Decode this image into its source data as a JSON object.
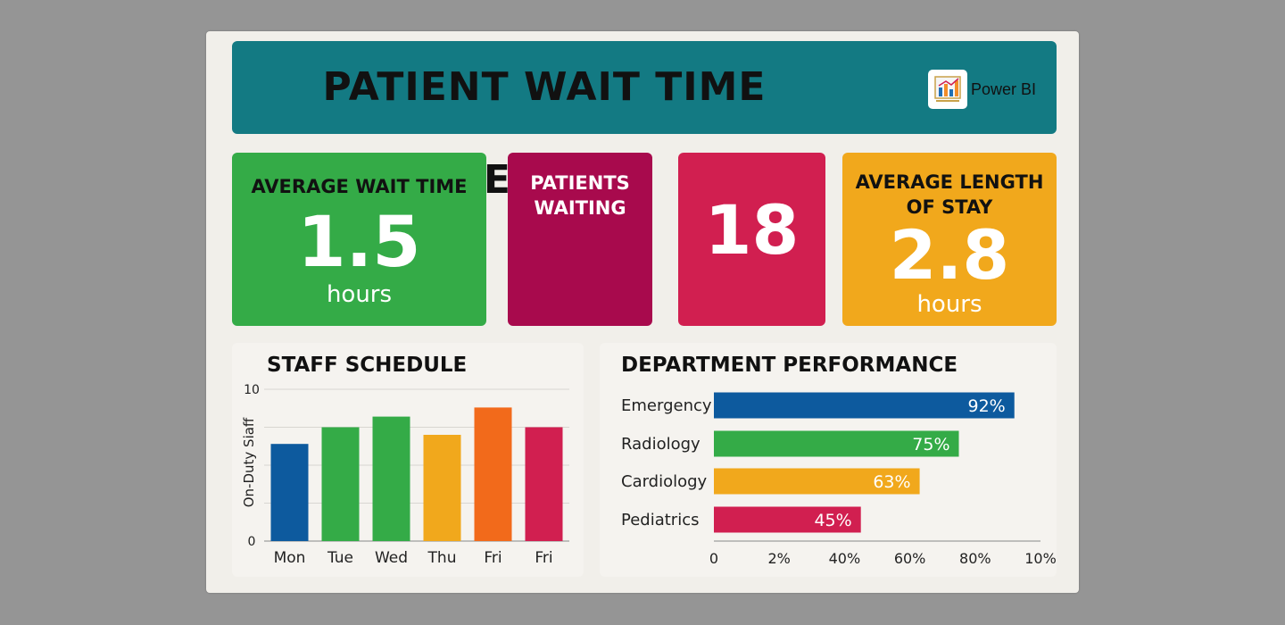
{
  "header": {
    "title": "PATIENT WAIT TIME METRICS",
    "brand_label": "Power BI"
  },
  "kpis": {
    "avg_wait": {
      "label": "AVERAGE WAIT TIME",
      "value": "1.5",
      "unit": "hours",
      "color": "#34ab47"
    },
    "patients_waiting": {
      "label_line1": "PATIENTS",
      "label_line2": "WAITING",
      "color": "#a80a4d"
    },
    "patients_count": {
      "value": "18",
      "color": "#d11f50"
    },
    "avg_length_of_stay": {
      "label_line1": "AVERAGE LENGTH",
      "label_line2": "OF STAY",
      "value": "2.8",
      "unit": "hours",
      "color": "#f1a81c"
    }
  },
  "staff": {
    "title": "STAFF SCHEDULE"
  },
  "dept": {
    "title": "DEPARTMENT PERFORMANCE"
  },
  "chart_data": [
    {
      "type": "bar",
      "title": "STAFF SCHEDULE",
      "ylabel": "On-Duty Siaff",
      "categories": [
        "Mon",
        "Tue",
        "Wed",
        "Thu",
        "Fri",
        "Fri"
      ],
      "values": [
        6.4,
        7.5,
        8.2,
        7.0,
        8.8,
        7.5
      ],
      "colors": [
        "#0d5a9e",
        "#34ab47",
        "#34ab47",
        "#f1a81c",
        "#f26a1b",
        "#d11f50"
      ],
      "ylim": [
        0,
        10
      ],
      "yticks": [
        "0",
        "10"
      ],
      "grid": true
    },
    {
      "type": "bar",
      "orientation": "horizontal",
      "title": "DEPARTMENT PERFORMANCE",
      "categories": [
        "Emergency",
        "Radiology",
        "Cardiology",
        "Pediatrics"
      ],
      "values": [
        92,
        75,
        63,
        45
      ],
      "data_labels": [
        "92%",
        "75%",
        "63%",
        "45%"
      ],
      "colors": [
        "#0d5a9e",
        "#34ab47",
        "#f1a81c",
        "#d11f50"
      ],
      "xlim": [
        0,
        100
      ],
      "xticks": [
        "0",
        "2%",
        "40%",
        "60%",
        "80%",
        "10%"
      ]
    }
  ]
}
